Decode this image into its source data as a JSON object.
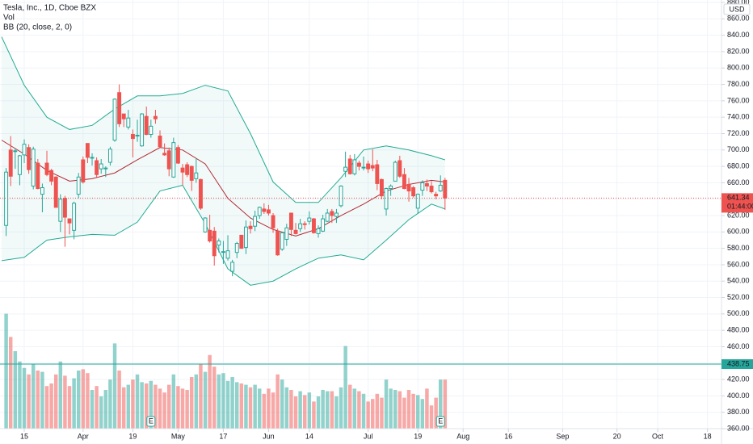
{
  "chart_data": {
    "type": "candlestick",
    "title": "Tesla, Inc., 1D, Cboe BZX",
    "currency": "USD",
    "countdown": "01:44:00",
    "grid": true,
    "up_color": "#26a69a",
    "down_color": "#ef5350",
    "x": [
      -4,
      -3,
      -2,
      -1,
      0,
      1,
      2,
      3,
      4,
      5,
      6,
      7,
      8,
      9,
      10,
      11,
      12,
      13,
      14,
      15,
      16,
      17,
      18,
      19,
      20,
      21,
      22,
      23,
      24,
      25,
      26,
      27,
      28,
      29,
      30,
      31,
      32,
      33,
      34,
      35,
      36,
      37,
      38,
      39,
      40,
      41,
      42,
      43,
      44,
      45,
      46,
      47,
      48,
      49,
      50,
      51,
      52,
      53,
      54,
      55,
      56,
      57,
      58,
      59,
      60,
      61,
      62,
      63,
      64,
      65,
      66,
      67,
      68,
      69,
      70,
      71,
      72,
      73,
      74,
      75,
      76,
      77,
      78,
      79,
      80,
      81,
      82,
      83,
      84,
      85,
      86,
      87,
      88,
      89,
      90,
      91,
      92,
      93
    ],
    "open": [
      608,
      700,
      699,
      670,
      694,
      703,
      656,
      684,
      646,
      684,
      675,
      667,
      613,
      641,
      616,
      602,
      646,
      688,
      708,
      690,
      687,
      677,
      677,
      685,
      712,
      770,
      744,
      728,
      719,
      717,
      705,
      741,
      719,
      741,
      717,
      696,
      699,
      667,
      703,
      678,
      682,
      680,
      665,
      664,
      600,
      602,
      601,
      584,
      575,
      568,
      552,
      575,
      596,
      581,
      607,
      607,
      620,
      628,
      627,
      620,
      601,
      579,
      591,
      623,
      602,
      604,
      610,
      613,
      616,
      598,
      601,
      613,
      625,
      619,
      632,
      674,
      689,
      671,
      684,
      678,
      683,
      681,
      682,
      664,
      628,
      653,
      662,
      687,
      670,
      658,
      654,
      629,
      651,
      659,
      656,
      646,
      650,
      663
    ],
    "high": [
      678,
      717,
      702,
      694,
      713,
      707,
      704,
      689,
      659,
      699,
      677,
      668,
      646,
      644,
      616,
      637,
      672,
      692,
      708,
      696,
      691,
      689,
      680,
      704,
      763,
      780,
      744,
      749,
      725,
      737,
      745,
      753,
      737,
      749,
      724,
      708,
      703,
      715,
      706,
      683,
      685,
      681,
      690,
      665,
      618,
      621,
      606,
      592,
      589,
      596,
      566,
      588,
      596,
      614,
      613,
      626,
      631,
      635,
      633,
      623,
      604,
      600,
      610,
      623,
      611,
      616,
      613,
      625,
      617,
      608,
      621,
      628,
      628,
      628,
      657,
      698,
      694,
      695,
      687,
      692,
      687,
      701,
      688,
      665,
      654,
      658,
      687,
      693,
      678,
      666,
      656,
      647,
      663,
      664,
      662,
      649,
      669,
      666
    ],
    "low": [
      595,
      656,
      677,
      657,
      684,
      671,
      652,
      652,
      624,
      668,
      657,
      630,
      600,
      582,
      597,
      591,
      641,
      659,
      684,
      681,
      667,
      671,
      667,
      681,
      710,
      728,
      728,
      725,
      691,
      710,
      704,
      718,
      715,
      732,
      703,
      693,
      668,
      666,
      683,
      657,
      667,
      650,
      660,
      627,
      599,
      587,
      559,
      575,
      561,
      565,
      546,
      568,
      580,
      573,
      598,
      601,
      616,
      622,
      620,
      599,
      571,
      577,
      583,
      595,
      597,
      600,
      603,
      609,
      598,
      593,
      600,
      612,
      611,
      611,
      630,
      667,
      670,
      669,
      675,
      675,
      672,
      674,
      651,
      640,
      620,
      644,
      662,
      666,
      652,
      637,
      642,
      622,
      644,
      650,
      647,
      640,
      649,
      627
    ],
    "close": [
      673,
      668,
      699,
      693,
      707,
      676,
      701,
      653,
      654,
      670,
      662,
      630,
      640,
      618,
      611,
      635,
      667,
      661,
      691,
      691,
      670,
      683,
      678,
      701,
      762,
      732,
      738,
      739,
      714,
      718,
      744,
      719,
      729,
      738,
      704,
      694,
      677,
      709,
      684,
      673,
      670,
      663,
      672,
      629,
      617,
      589,
      571,
      589,
      576,
      577,
      563,
      586,
      580,
      606,
      604,
      619,
      630,
      625,
      623,
      605,
      572,
      599,
      605,
      603,
      598,
      610,
      609,
      617,
      599,
      604,
      616,
      623,
      620,
      623,
      656,
      679,
      671,
      688,
      680,
      679,
      677,
      678,
      659,
      644,
      653,
      656,
      685,
      668,
      653,
      650,
      644,
      646,
      660,
      656,
      649,
      644,
      657,
      641.34
    ],
    "volume": {
      "name": "Vol",
      "ylim": [
        0,
        100
      ],
      "values": [
        89,
        71,
        60,
        52,
        47,
        42,
        50,
        45,
        44,
        33,
        35,
        42,
        52,
        41,
        33,
        39,
        45,
        46,
        43,
        30,
        33,
        25,
        30,
        38,
        66,
        45,
        32,
        34,
        38,
        42,
        36,
        35,
        37,
        34,
        31,
        28,
        34,
        42,
        33,
        31,
        30,
        40,
        42,
        50,
        44,
        57,
        48,
        42,
        43,
        37,
        40,
        36,
        35,
        34,
        32,
        34,
        31,
        27,
        31,
        28,
        42,
        38,
        32,
        30,
        25,
        29,
        26,
        28,
        21,
        25,
        30,
        29,
        29,
        25,
        32,
        64,
        34,
        31,
        29,
        27,
        21,
        23,
        27,
        24,
        38,
        31,
        30,
        29,
        24,
        30,
        27,
        26,
        23,
        31,
        18,
        24,
        38,
        38
      ]
    },
    "bollinger": {
      "name": "BB (20, close, 2, 0)",
      "upper_color": "#22ab94",
      "basis_color": "#b22833",
      "x": [
        -5,
        0,
        5,
        10,
        15,
        20,
        25,
        30,
        35,
        40,
        45,
        50,
        55,
        60,
        65,
        70,
        75,
        80,
        85,
        90,
        93
      ],
      "upper": [
        838,
        779,
        740,
        725,
        730,
        750,
        766,
        766,
        769,
        779,
        772,
        720,
        661,
        636,
        636,
        666,
        700,
        705,
        700,
        693,
        688
      ],
      "basis": [
        712,
        695,
        675,
        662,
        665,
        672,
        688,
        703,
        700,
        683,
        641,
        617,
        603,
        595,
        604,
        620,
        634,
        650,
        658,
        663,
        661
      ],
      "lower": [
        565,
        569,
        590,
        594,
        597,
        596,
        612,
        650,
        657,
        610,
        555,
        535,
        540,
        555,
        568,
        572,
        566,
        590,
        615,
        634,
        628
      ]
    },
    "earnings": {
      "x": [
        28,
        92
      ],
      "label": "E"
    },
    "alert_line": 438.75,
    "xlim": [
      -5.36,
      154.1
    ],
    "xticks": [
      {
        "value": 0,
        "label": "15"
      },
      {
        "value": 13,
        "label": "Apr"
      },
      {
        "value": 24,
        "label": "19"
      },
      {
        "value": 34,
        "label": "May"
      },
      {
        "value": 44,
        "label": "17"
      },
      {
        "value": 54,
        "label": "Jun"
      },
      {
        "value": 63,
        "label": "14"
      },
      {
        "value": 76,
        "label": "Jul"
      },
      {
        "value": 87,
        "label": "19"
      },
      {
        "value": 97,
        "label": "Aug"
      },
      {
        "value": 107,
        "label": "16"
      },
      {
        "value": 119,
        "label": "Sep"
      },
      {
        "value": 131,
        "label": "20"
      },
      {
        "value": 140,
        "label": "Oct"
      },
      {
        "value": 151,
        "label": "18"
      }
    ],
    "ylim": [
      360,
      883
    ],
    "yticks": [
      {
        "value": 880,
        "label": "880.00"
      },
      {
        "value": 860,
        "label": "860.00"
      },
      {
        "value": 840,
        "label": "840.00"
      },
      {
        "value": 820,
        "label": "820.00"
      },
      {
        "value": 800,
        "label": "800.00"
      },
      {
        "value": 780,
        "label": "780.00"
      },
      {
        "value": 760,
        "label": "760.00"
      },
      {
        "value": 740,
        "label": "740.00"
      },
      {
        "value": 720,
        "label": "720.00"
      },
      {
        "value": 700,
        "label": "700.00"
      },
      {
        "value": 680,
        "label": "680.00"
      },
      {
        "value": 660,
        "label": "660.00"
      },
      {
        "value": 640,
        "label": "640.00"
      },
      {
        "value": 620,
        "label": "620.00"
      },
      {
        "value": 600,
        "label": "600.00"
      },
      {
        "value": 580,
        "label": "580.00"
      },
      {
        "value": 560,
        "label": "560.00"
      },
      {
        "value": 540,
        "label": "540.00"
      },
      {
        "value": 520,
        "label": "520.00"
      },
      {
        "value": 500,
        "label": "500.00"
      },
      {
        "value": 480,
        "label": "480.00"
      },
      {
        "value": 460,
        "label": "460.00"
      },
      {
        "value": 440,
        "label": "440.00"
      },
      {
        "value": 420,
        "label": "420.00"
      },
      {
        "value": 400,
        "label": "400.00"
      },
      {
        "value": 380,
        "label": "380.00"
      },
      {
        "value": 360,
        "label": "360.00"
      }
    ]
  }
}
